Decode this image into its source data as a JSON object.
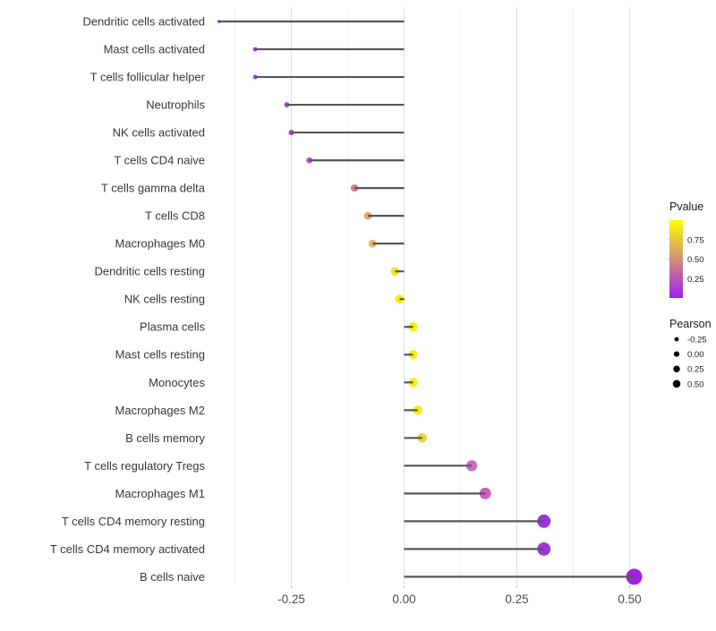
{
  "chart_data": {
    "type": "lollipop",
    "title": "",
    "xlabel": "",
    "ylabel": "",
    "xlim": [
      -0.43,
      0.56
    ],
    "x_major_ticks": [
      -0.25,
      0,
      0.25,
      0.5
    ],
    "x_tick_labels": [
      "-0.25",
      "0.00",
      "0.25",
      "0.50"
    ],
    "x_minor_ticks": [
      -0.375,
      -0.125,
      0.125,
      0.375
    ],
    "grid": "vertical-only",
    "background": "#ffffff",
    "stem_color": "#575757",
    "points": [
      {
        "category": "Dendritic cells activated",
        "pearson": -0.41,
        "color": "#8531bb"
      },
      {
        "category": "Mast cells activated",
        "pearson": -0.33,
        "color": "#9a3ecf"
      },
      {
        "category": "T cells follicular helper",
        "pearson": -0.33,
        "color": "#9a3ecf"
      },
      {
        "category": "Neutrophils",
        "pearson": -0.26,
        "color": "#a348d4"
      },
      {
        "category": "NK cells activated",
        "pearson": -0.25,
        "color": "#a348d4"
      },
      {
        "category": "T cells CD4 naive",
        "pearson": -0.21,
        "color": "#b254cf"
      },
      {
        "category": "T cells gamma delta",
        "pearson": -0.11,
        "color": "#d5837f"
      },
      {
        "category": "T cells CD8",
        "pearson": -0.08,
        "color": "#e5a668"
      },
      {
        "category": "Macrophages M0",
        "pearson": -0.07,
        "color": "#eaba59"
      },
      {
        "category": "Dendritic cells resting",
        "pearson": -0.02,
        "color": "#f2e32a"
      },
      {
        "category": "NK cells resting",
        "pearson": -0.01,
        "color": "#f7ef0c"
      },
      {
        "category": "Plasma cells",
        "pearson": 0.02,
        "color": "#f7ef0c"
      },
      {
        "category": "Mast cells resting",
        "pearson": 0.02,
        "color": "#f6ed14"
      },
      {
        "category": "Monocytes",
        "pearson": 0.02,
        "color": "#f6ed14"
      },
      {
        "category": "Macrophages M2",
        "pearson": 0.03,
        "color": "#f4e81e"
      },
      {
        "category": "B cells memory",
        "pearson": 0.04,
        "color": "#edd23f"
      },
      {
        "category": "T cells regulatory  Tregs",
        "pearson": 0.15,
        "color": "#cf6cbe"
      },
      {
        "category": "Macrophages M1",
        "pearson": 0.18,
        "color": "#ca5fc7"
      },
      {
        "category": "T cells CD4 memory resting",
        "pearson": 0.31,
        "color": "#9c34dc"
      },
      {
        "category": "T cells CD4 memory activated",
        "pearson": 0.31,
        "color": "#9c34dc"
      },
      {
        "category": "B cells naive",
        "pearson": 0.51,
        "color": "#a31fe4"
      }
    ],
    "legends": {
      "pvalue": {
        "title": "Pvalue",
        "tick_labels": [
          "0.75",
          "0.50",
          "0.25"
        ],
        "tick_values": [
          0.75,
          0.5,
          0.25
        ],
        "range": [
          0,
          1
        ],
        "gradient_low_color": "#a020f0",
        "gradient_high_color": "#ffff00"
      },
      "pearson": {
        "title": "Pearson",
        "tick_labels": [
          "-0.25",
          "0.00",
          "0.25",
          "0.50"
        ],
        "tick_values": [
          -0.25,
          0,
          0.25,
          0.5
        ],
        "dot_color": "#000000"
      },
      "position": "right"
    }
  }
}
